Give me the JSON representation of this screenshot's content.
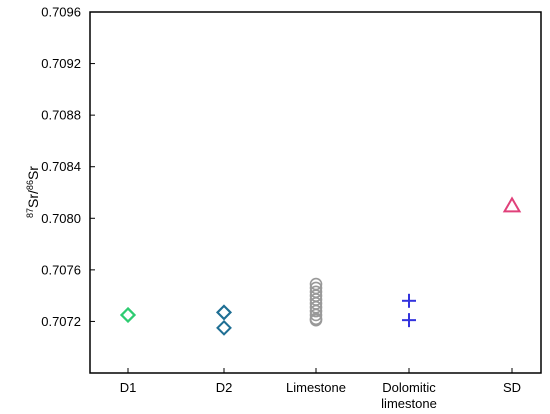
{
  "chart_data": {
    "type": "scatter",
    "title": "",
    "xlabel": "",
    "ylabel": {
      "sup1": "87",
      "base1": "Sr/",
      "sup2": "86",
      "base2": "Sr"
    },
    "ylim": [
      0.7068,
      0.7096
    ],
    "yticks": [
      "0.7072",
      "0.7076",
      "0.7080",
      "0.7084",
      "0.7088",
      "0.7092",
      "0.7096"
    ],
    "categories": [
      {
        "label": [
          "D1"
        ]
      },
      {
        "label": [
          "D2"
        ]
      },
      {
        "label": [
          "Limestone"
        ]
      },
      {
        "label": [
          "Dolomitic",
          "limestone"
        ]
      },
      {
        "label": [
          "SD"
        ]
      }
    ],
    "grid": false,
    "series": [
      {
        "category": "D1",
        "marker": "diamond",
        "color": "#2ecc71",
        "values": [
          0.70725,
          0.70725,
          0.70725
        ]
      },
      {
        "category": "D2",
        "marker": "diamond",
        "color": "#1f6f94",
        "values": [
          0.70727,
          0.70727,
          0.70715
        ]
      },
      {
        "category": "Limestone",
        "marker": "circle",
        "color": "#999999",
        "values": [
          0.70749,
          0.70746,
          0.70743,
          0.7074,
          0.70737,
          0.70734,
          0.70731,
          0.70728,
          0.70725,
          0.70722,
          0.70721
        ]
      },
      {
        "category": "Dolomitic limestone",
        "marker": "plus",
        "color": "#3333dd",
        "values": [
          0.70736,
          0.70721
        ]
      },
      {
        "category": "SD",
        "marker": "triangle",
        "color": "#e0407a",
        "values": [
          0.7081
        ]
      }
    ]
  }
}
